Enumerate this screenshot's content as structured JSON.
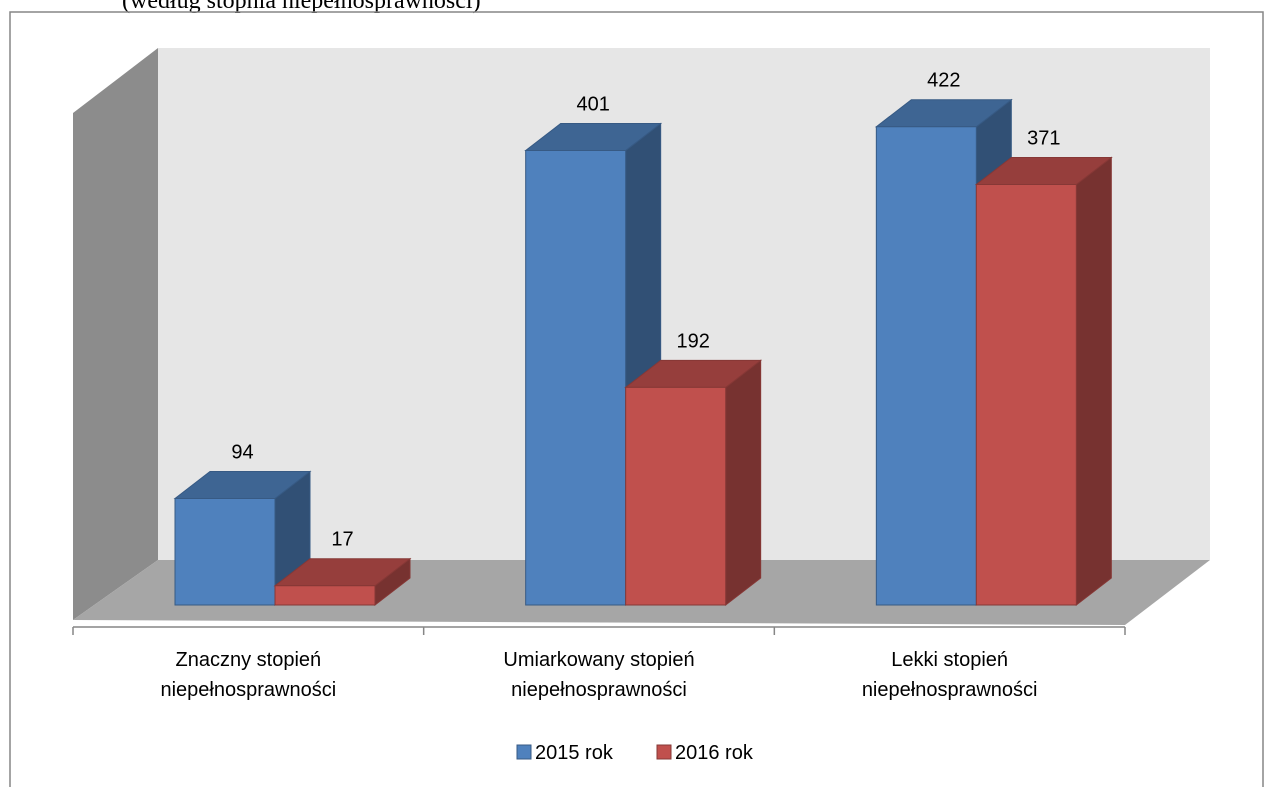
{
  "chart_data": {
    "type": "bar3d",
    "subtitle": "(według stopnia niepełnosprawności)",
    "categories": [
      "Znaczny stopień niepełnosprawności",
      "Umiarkowany stopień niepełnosprawności",
      "Lekki stopień niepełnosprawności"
    ],
    "series": [
      {
        "name": "2015 rok",
        "color": "#4f81bd",
        "values": [
          94,
          401,
          422
        ]
      },
      {
        "name": "2016 rok",
        "color": "#c0504d",
        "values": [
          17,
          192,
          371
        ]
      }
    ],
    "ylim": [
      0,
      450
    ],
    "legend": "bottom"
  }
}
